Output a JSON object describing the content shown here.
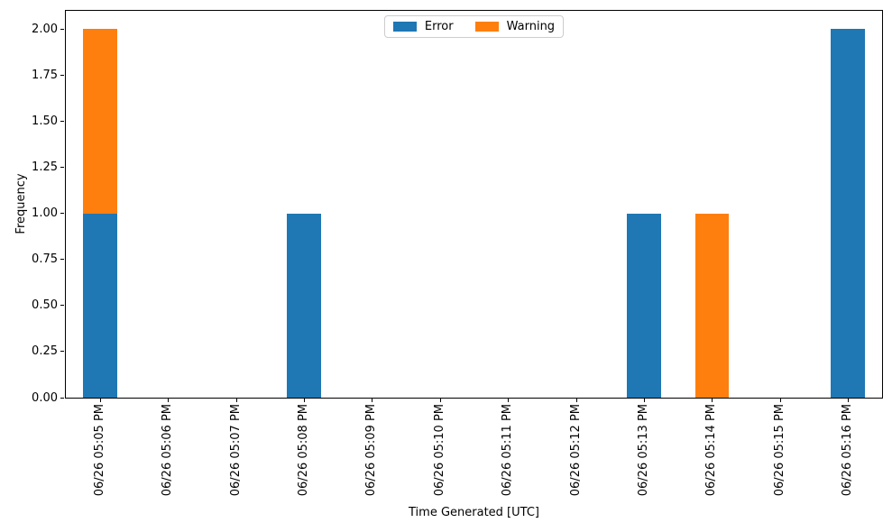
{
  "chart_data": {
    "type": "bar",
    "stacked": true,
    "title": "",
    "xlabel": "Time Generated [UTC]",
    "ylabel": "Frequency",
    "categories": [
      "06/26 05:05 PM",
      "06/26 05:06 PM",
      "06/26 05:07 PM",
      "06/26 05:08 PM",
      "06/26 05:09 PM",
      "06/26 05:10 PM",
      "06/26 05:11 PM",
      "06/26 05:12 PM",
      "06/26 05:13 PM",
      "06/26 05:14 PM",
      "06/26 05:15 PM",
      "06/26 05:16 PM"
    ],
    "series": [
      {
        "name": "Error",
        "color": "#1f77b4",
        "values": [
          1,
          0,
          0,
          1,
          0,
          0,
          0,
          0,
          1,
          0,
          0,
          2
        ]
      },
      {
        "name": "Warning",
        "color": "#ff7f0e",
        "values": [
          1,
          0,
          0,
          0,
          0,
          0,
          0,
          0,
          0,
          1,
          0,
          0
        ]
      }
    ],
    "ylim": [
      0,
      2.1
    ],
    "yticks": [
      0,
      0.25,
      0.5,
      0.75,
      1.0,
      1.25,
      1.5,
      1.75,
      2.0
    ],
    "ytick_labels": [
      "0.00",
      "0.25",
      "0.50",
      "0.75",
      "1.00",
      "1.25",
      "1.50",
      "1.75",
      "2.00"
    ],
    "bar_width_fraction": 0.5,
    "grid": false,
    "legend": {
      "position": "upper center",
      "entries": [
        "Error",
        "Warning"
      ]
    },
    "background": "#ffffff",
    "spine_color": "#000000"
  }
}
